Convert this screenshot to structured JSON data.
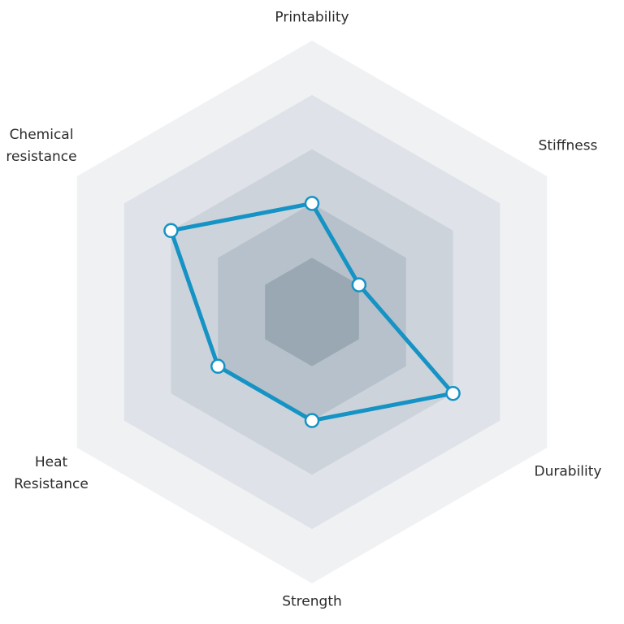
{
  "chart_data": {
    "type": "radar",
    "categories": [
      "Printability",
      "Stiffness",
      "Durability",
      "Strength",
      "Heat Resistance",
      "Chemical resistance"
    ],
    "values": [
      2,
      1,
      3,
      2,
      2,
      3
    ],
    "color": "#1593c4",
    "ylim": [
      0,
      5
    ],
    "yticks": [
      1,
      2,
      3,
      4,
      5
    ],
    "grid": true,
    "grid_colors": [
      "#9aa8b4",
      "#b6c1cb",
      "#ccd3db",
      "#dfe3e9",
      "#f0f1f3"
    ]
  }
}
